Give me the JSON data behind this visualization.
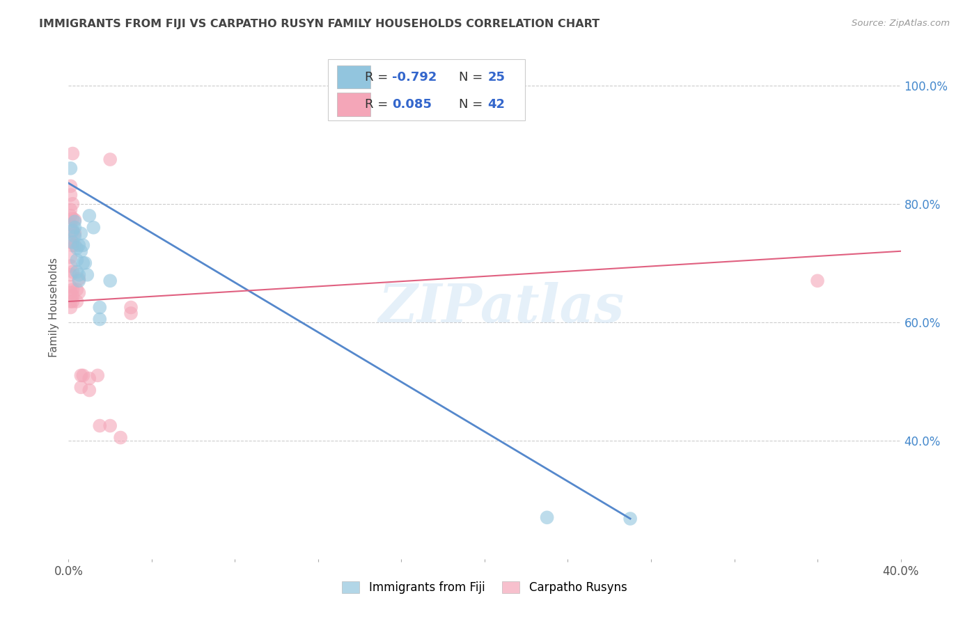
{
  "title": "IMMIGRANTS FROM FIJI VS CARPATHO RUSYN FAMILY HOUSEHOLDS CORRELATION CHART",
  "source": "Source: ZipAtlas.com",
  "ylabel": "Family Households",
  "xlim": [
    0.0,
    0.4
  ],
  "ylim": [
    0.2,
    1.05
  ],
  "x_ticks": [
    0.0,
    0.04,
    0.08,
    0.12,
    0.16,
    0.2,
    0.24,
    0.28,
    0.32,
    0.36,
    0.4
  ],
  "x_tick_labels": [
    "0.0%",
    "",
    "",
    "",
    "",
    "",
    "",
    "",
    "",
    "",
    "40.0%"
  ],
  "ytick_positions_right": [
    1.0,
    0.8,
    0.6,
    0.4
  ],
  "ytick_labels_right": [
    "100.0%",
    "80.0%",
    "60.0%",
    "40.0%"
  ],
  "watermark": "ZIPatlas",
  "blue_color": "#92c5de",
  "pink_color": "#f4a6b8",
  "blue_line_color": "#5588cc",
  "pink_line_color": "#e06080",
  "fiji_points": [
    [
      0.001,
      0.86
    ],
    [
      0.002,
      0.755
    ],
    [
      0.002,
      0.735
    ],
    [
      0.003,
      0.77
    ],
    [
      0.003,
      0.745
    ],
    [
      0.003,
      0.76
    ],
    [
      0.004,
      0.725
    ],
    [
      0.004,
      0.705
    ],
    [
      0.004,
      0.685
    ],
    [
      0.005,
      0.73
    ],
    [
      0.005,
      0.68
    ],
    [
      0.005,
      0.67
    ],
    [
      0.006,
      0.75
    ],
    [
      0.006,
      0.72
    ],
    [
      0.007,
      0.73
    ],
    [
      0.007,
      0.7
    ],
    [
      0.008,
      0.7
    ],
    [
      0.009,
      0.68
    ],
    [
      0.01,
      0.78
    ],
    [
      0.012,
      0.76
    ],
    [
      0.015,
      0.625
    ],
    [
      0.015,
      0.605
    ],
    [
      0.02,
      0.67
    ],
    [
      0.23,
      0.27
    ],
    [
      0.27,
      0.268
    ]
  ],
  "rusyn_points": [
    [
      0.001,
      0.83
    ],
    [
      0.001,
      0.815
    ],
    [
      0.001,
      0.79
    ],
    [
      0.001,
      0.78
    ],
    [
      0.001,
      0.765
    ],
    [
      0.001,
      0.735
    ],
    [
      0.001,
      0.71
    ],
    [
      0.001,
      0.695
    ],
    [
      0.001,
      0.68
    ],
    [
      0.001,
      0.66
    ],
    [
      0.001,
      0.65
    ],
    [
      0.001,
      0.635
    ],
    [
      0.001,
      0.625
    ],
    [
      0.002,
      0.885
    ],
    [
      0.002,
      0.8
    ],
    [
      0.002,
      0.775
    ],
    [
      0.002,
      0.753
    ],
    [
      0.002,
      0.73
    ],
    [
      0.002,
      0.685
    ],
    [
      0.002,
      0.655
    ],
    [
      0.002,
      0.645
    ],
    [
      0.002,
      0.635
    ],
    [
      0.003,
      0.773
    ],
    [
      0.003,
      0.75
    ],
    [
      0.003,
      0.73
    ],
    [
      0.004,
      0.655
    ],
    [
      0.004,
      0.635
    ],
    [
      0.005,
      0.673
    ],
    [
      0.005,
      0.65
    ],
    [
      0.006,
      0.51
    ],
    [
      0.006,
      0.49
    ],
    [
      0.007,
      0.51
    ],
    [
      0.01,
      0.505
    ],
    [
      0.01,
      0.485
    ],
    [
      0.014,
      0.51
    ],
    [
      0.015,
      0.425
    ],
    [
      0.02,
      0.875
    ],
    [
      0.02,
      0.425
    ],
    [
      0.025,
      0.405
    ],
    [
      0.03,
      0.625
    ],
    [
      0.03,
      0.615
    ],
    [
      0.36,
      0.67
    ]
  ],
  "blue_line_x": [
    0.0,
    0.27
  ],
  "blue_line_y": [
    0.835,
    0.268
  ],
  "pink_line_x": [
    0.0,
    0.4
  ],
  "pink_line_y": [
    0.635,
    0.72
  ],
  "legend_r_blue": "-0.792",
  "legend_n_blue": "25",
  "legend_r_pink": "0.085",
  "legend_n_pink": "42",
  "background_color": "#ffffff",
  "grid_color": "#cccccc"
}
